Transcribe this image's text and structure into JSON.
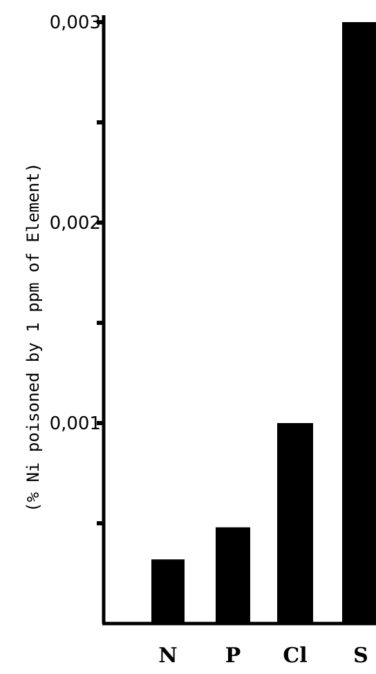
{
  "chart_data": {
    "type": "bar",
    "title": "",
    "xlabel": "",
    "ylabel": "(% Ni poisoned by 1 ppm of Element)",
    "categories": [
      "N",
      "P",
      "Cl",
      "S"
    ],
    "values": [
      0.00032,
      0.00048,
      0.001,
      0.003
    ],
    "ylim": [
      0,
      0.003
    ],
    "yticks": [
      0.0005,
      0.001,
      0.0015,
      0.002,
      0.0025,
      0.003
    ],
    "ytick_labels": [
      "",
      "0,001",
      "",
      "0,002",
      "",
      "0,003"
    ],
    "bar_color": "#000000",
    "grid": false,
    "legend": "none"
  }
}
